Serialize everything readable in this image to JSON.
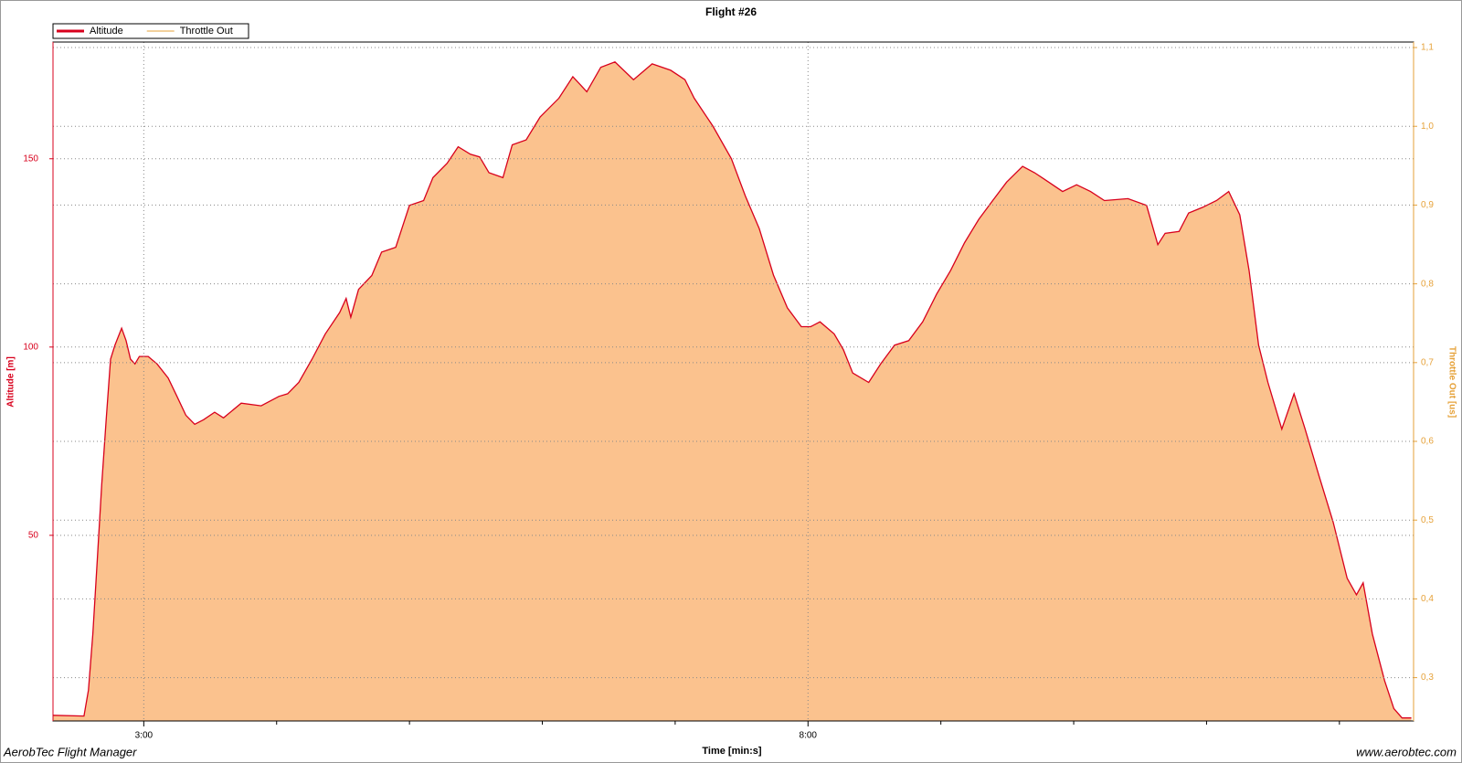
{
  "chart_data": {
    "type": "area",
    "title": "Flight #26",
    "x_label": "Time [min:s]",
    "y_label": "Altitude [m]",
    "y2_label": "Throttle Out [us]",
    "footer_left": "AerobTec Flight Manager",
    "footer_right": "www.aerobtec.com",
    "x": [
      139,
      153,
      155,
      157,
      159,
      161,
      163,
      165,
      167,
      170,
      172,
      174,
      176,
      178,
      182,
      186,
      191,
      195,
      199,
      203,
      207,
      212,
      216,
      224,
      233,
      241,
      245,
      250,
      256,
      262,
      268.5,
      271.4,
      273.5,
      277,
      283,
      287.4,
      293.8,
      300,
      306.4,
      310.6,
      317,
      322,
      327.5,
      331.7,
      335.9,
      342.2,
      346.4,
      352.7,
      359,
      367.5,
      373.8,
      380.1,
      386.4,
      392.8,
      401.2,
      409.6,
      418,
      424.4,
      428.6,
      437,
      445.4,
      451.7,
      458,
      464.4,
      470.7,
      477,
      481.2,
      485.4,
      491.8,
      496,
      500.2,
      507.4,
      512.8,
      519.1,
      525.5,
      531.8,
      538.1,
      544.4,
      550.7,
      557.1,
      563.4,
      569.7,
      576.9,
      582.3,
      588.7,
      595,
      601.3,
      607.6,
      613.9,
      624.5,
      632.9,
      638,
      641.3,
      647.6,
      651.9,
      658.2,
      664.5,
      670,
      675,
      679.2,
      683.5,
      687.7,
      694,
      699.5,
      704.5,
      710.8,
      717.2,
      723.5,
      727.7,
      730.7,
      734.9,
      740.4,
      744.6,
      748.3,
      752.5
    ],
    "series": [
      {
        "name": "Altitude",
        "color": "#d8001c",
        "fill": "#fbc28e",
        "values": [
          2.2,
          2.0,
          8.9,
          23.8,
          43.6,
          63.4,
          80.7,
          96.8,
          100.5,
          105,
          101.7,
          96.8,
          95.5,
          97.5,
          97.5,
          95.5,
          91.8,
          86.9,
          81.9,
          79.5,
          80.7,
          82.7,
          81.2,
          85.1,
          84.4,
          86.9,
          87.6,
          90.6,
          96.8,
          103.5,
          109.2,
          112.9,
          107.9,
          115.3,
          119,
          125.2,
          126.5,
          137.6,
          138.9,
          145,
          148.8,
          153.2,
          151.2,
          150.5,
          146.3,
          145,
          153.7,
          155,
          161.1,
          166.1,
          171.8,
          167.8,
          174.3,
          175.7,
          171,
          175.2,
          173.5,
          171,
          166.1,
          158.7,
          150,
          140.1,
          131.4,
          119.1,
          110.4,
          105.4,
          105.4,
          106.7,
          103.5,
          99.3,
          93.1,
          90.6,
          95.5,
          100.5,
          101.7,
          106.7,
          114.1,
          120.3,
          127.7,
          133.9,
          138.9,
          143.8,
          148,
          146.3,
          143.8,
          141.3,
          143.1,
          141.3,
          138.9,
          139.4,
          137.6,
          127.2,
          130.2,
          130.7,
          135.6,
          137.1,
          138.9,
          141.3,
          135.1,
          120.3,
          100.5,
          90.6,
          78.2,
          87.6,
          78.2,
          65.8,
          53.5,
          38.6,
          34.2,
          37.4,
          23.8,
          11.4,
          4,
          1.5,
          1.5
        ]
      },
      {
        "name": "Throttle Out",
        "color": "#e6a23a",
        "axis": "y2"
      }
    ],
    "xlim": [
      139,
      753.5
    ],
    "xticks": [
      {
        "value": 180,
        "label": "3:00"
      },
      {
        "value": 480,
        "label": "8:00"
      }
    ],
    "xminor_ticks": [
      240,
      300,
      360,
      420,
      540,
      600,
      660,
      720
    ],
    "ylim": [
      0.7,
      181
    ],
    "yticks": [
      50,
      100,
      150
    ],
    "y2lim": [
      0.245,
      1.107
    ],
    "y2ticks": [
      {
        "value": 0.3,
        "label": "0,3"
      },
      {
        "value": 0.4,
        "label": "0,4"
      },
      {
        "value": 0.5,
        "label": "0,5"
      },
      {
        "value": 0.6,
        "label": "0,6"
      },
      {
        "value": 0.7,
        "label": "0,7"
      },
      {
        "value": 0.8,
        "label": "0,8"
      },
      {
        "value": 0.9,
        "label": "0,9"
      },
      {
        "value": 1.0,
        "label": "1,0"
      },
      {
        "value": 1.1,
        "label": "1,1"
      }
    ],
    "grid": true
  }
}
